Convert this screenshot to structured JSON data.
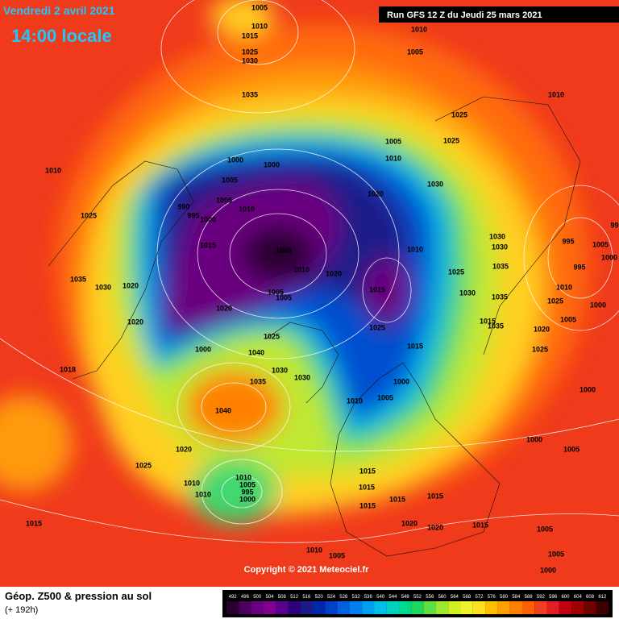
{
  "header": {
    "date": "Vendredi 2 avril 2021",
    "time": "14:00 locale",
    "run": "Run GFS 12 Z du Jeudi 25 mars 2021"
  },
  "map": {
    "copyright": "Copyright © 2021 Meteociel.fr",
    "isobar_labels": [
      1005,
      1010,
      1015,
      1025,
      1030,
      1035,
      1010,
      1005,
      1010,
      1025,
      1005,
      1010,
      1025,
      1000,
      1000,
      1010,
      1005,
      1020,
      1030,
      990,
      995,
      1000,
      1005,
      1010,
      1025,
      1015,
      1005,
      1010,
      1020,
      1010,
      1025,
      1030,
      1030,
      1035,
      1035,
      1030,
      1020,
      1020,
      1005,
      1005,
      1015,
      1020,
      1025,
      1025,
      1040,
      1000,
      1015,
      1030,
      1030,
      1035,
      1000,
      1005,
      1010,
      1040,
      1018,
      1020,
      1025,
      1010,
      1010,
      1010,
      1005,
      995,
      1000,
      1015,
      1015,
      1015,
      1015,
      1015,
      1020,
      1020,
      1015,
      1015,
      1010,
      1005,
      1000,
      1005,
      1005,
      1005,
      1000,
      1000,
      1025,
      1020,
      1005,
      1000,
      1025,
      995,
      995,
      1005,
      1000,
      995,
      1010,
      1035,
      1015,
      1030,
      1035
    ]
  },
  "legend": {
    "title": "Géop. Z500 & pression au sol",
    "lead": "(+ 192h)",
    "levels": [
      492,
      496,
      500,
      504,
      508,
      512,
      516,
      520,
      524,
      528,
      532,
      536,
      540,
      544,
      548,
      552,
      556,
      560,
      564,
      568,
      572,
      576,
      580,
      584,
      588,
      592,
      596,
      600,
      604,
      608,
      612
    ],
    "colors": [
      "#2a0030",
      "#4b0060",
      "#6a0080",
      "#800090",
      "#5a0090",
      "#30007a",
      "#1a1a8a",
      "#0028a8",
      "#0040c8",
      "#0060e0",
      "#0080f0",
      "#00a0f0",
      "#00c0e8",
      "#00d0c0",
      "#00d890",
      "#20d860",
      "#60e040",
      "#a0e830",
      "#d0f020",
      "#f0f030",
      "#ffe020",
      "#ffc000",
      "#ffa000",
      "#ff8000",
      "#ff6000",
      "#f04020",
      "#e02020",
      "#c00010",
      "#a00000",
      "#700000",
      "#400000"
    ]
  }
}
